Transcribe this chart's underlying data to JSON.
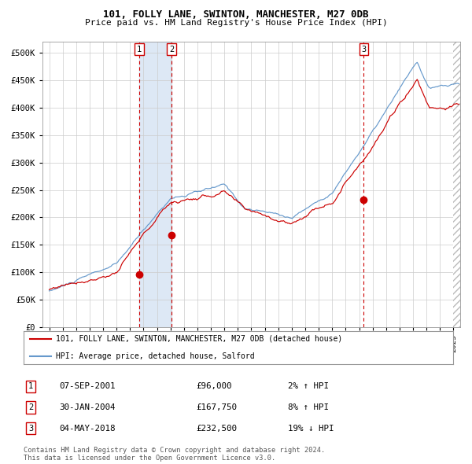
{
  "title1": "101, FOLLY LANE, SWINTON, MANCHESTER, M27 0DB",
  "title2": "Price paid vs. HM Land Registry's House Price Index (HPI)",
  "legend_red": "101, FOLLY LANE, SWINTON, MANCHESTER, M27 0DB (detached house)",
  "legend_blue": "HPI: Average price, detached house, Salford",
  "transactions": [
    {
      "num": 1,
      "date": "07-SEP-2001",
      "price": 96000,
      "pct": "2%",
      "dir": "↑"
    },
    {
      "num": 2,
      "date": "30-JAN-2004",
      "price": 167750,
      "pct": "8%",
      "dir": "↑"
    },
    {
      "num": 3,
      "date": "04-MAY-2018",
      "price": 232500,
      "pct": "19%",
      "dir": "↓"
    }
  ],
  "transaction_dates_decimal": [
    2001.68,
    2004.08,
    2018.34
  ],
  "transaction_prices": [
    96000,
    167750,
    232500
  ],
  "shade_regions": [
    [
      2001.68,
      2004.08
    ]
  ],
  "vline_dates": [
    2001.68,
    2004.08,
    2018.34
  ],
  "ylabel_vals": [
    0,
    50000,
    100000,
    150000,
    200000,
    250000,
    300000,
    350000,
    400000,
    450000,
    500000
  ],
  "ylim": [
    0,
    520000
  ],
  "xlim_start": 1994.5,
  "xlim_end": 2025.5,
  "color_red": "#cc0000",
  "color_blue": "#6699cc",
  "color_shade": "#dde8f5",
  "footer": "Contains HM Land Registry data © Crown copyright and database right 2024.\nThis data is licensed under the Open Government Licence v3.0."
}
